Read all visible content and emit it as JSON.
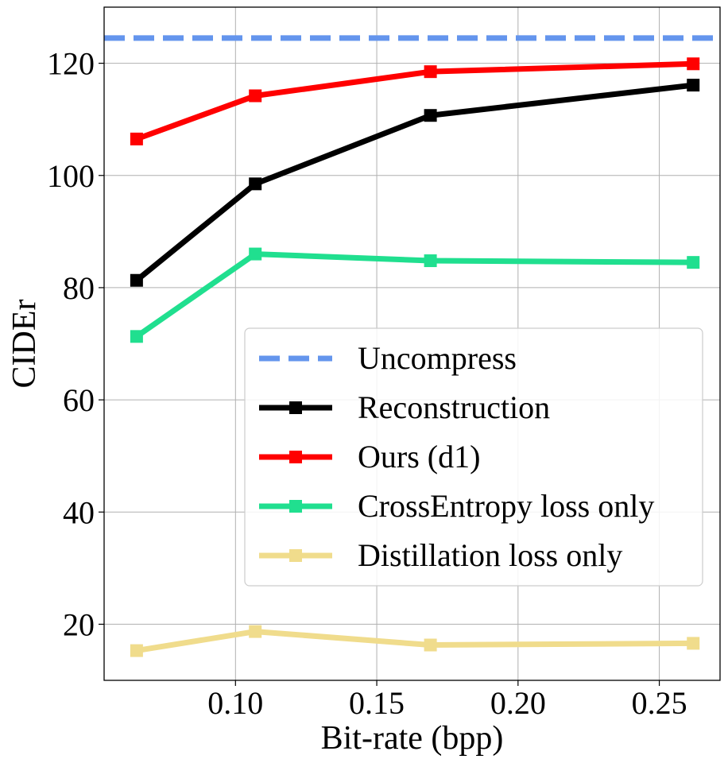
{
  "chart_data": {
    "type": "line",
    "xlabel": "Bit-rate (bpp)",
    "ylabel": "CIDEr",
    "xlim": [
      0.0535,
      0.2715
    ],
    "ylim": [
      10,
      130
    ],
    "xticks": [
      "0.10",
      "0.15",
      "0.20",
      "0.25"
    ],
    "xtick_values": [
      0.1,
      0.15,
      0.2,
      0.25
    ],
    "yticks": [
      "20",
      "40",
      "60",
      "80",
      "100",
      "120"
    ],
    "ytick_values": [
      20,
      40,
      60,
      80,
      100,
      120
    ],
    "grid": true,
    "legend_position": "center-right",
    "x": [
      0.065,
      0.107,
      0.169,
      0.262
    ],
    "series": [
      {
        "name": "Uncompress",
        "type": "hline",
        "value": 124.5,
        "color": "#6495ED",
        "style": "dashed"
      },
      {
        "name": "Reconstruction",
        "values": [
          81.3,
          98.5,
          110.7,
          116.1
        ],
        "color": "#000000",
        "marker": "square"
      },
      {
        "name": "Ours (d1)",
        "values": [
          106.5,
          114.2,
          118.5,
          119.9
        ],
        "color": "#FF0000",
        "marker": "square"
      },
      {
        "name": "CrossEntropy loss only",
        "values": [
          71.3,
          86.0,
          84.8,
          84.5
        ],
        "color": "#20DF8F",
        "marker": "square"
      },
      {
        "name": "Distillation loss only",
        "values": [
          15.3,
          18.7,
          16.3,
          16.6
        ],
        "color": "#F0DC8C",
        "marker": "square"
      }
    ]
  }
}
